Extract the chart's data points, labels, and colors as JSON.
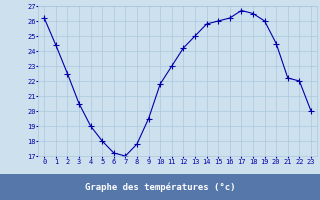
{
  "x": [
    0,
    1,
    2,
    3,
    4,
    5,
    6,
    7,
    8,
    9,
    10,
    11,
    12,
    13,
    14,
    15,
    16,
    17,
    18,
    19,
    20,
    21,
    22,
    23
  ],
  "y": [
    26.2,
    24.4,
    22.5,
    20.5,
    19.0,
    18.0,
    17.2,
    17.0,
    17.8,
    19.5,
    21.8,
    23.0,
    24.2,
    25.0,
    25.8,
    26.0,
    26.2,
    26.7,
    26.5,
    26.0,
    24.5,
    22.2,
    22.0,
    20.0
  ],
  "line_color": "#0000aa",
  "marker": "+",
  "marker_size": 4,
  "bg_color": "#cce0ee",
  "grid_color": "#aac8dc",
  "xlabel": "Graphe des températures (°c)",
  "xlabel_bg": "#5577aa",
  "ylim": [
    17,
    27
  ],
  "xlim": [
    -0.5,
    23.5
  ],
  "yticks": [
    17,
    18,
    19,
    20,
    21,
    22,
    23,
    24,
    25,
    26,
    27
  ],
  "xticks": [
    0,
    1,
    2,
    3,
    4,
    5,
    6,
    7,
    8,
    9,
    10,
    11,
    12,
    13,
    14,
    15,
    16,
    17,
    18,
    19,
    20,
    21,
    22,
    23
  ],
  "tick_color": "#0000aa",
  "tick_label_fontsize": 5,
  "xlabel_fontsize": 6.5
}
